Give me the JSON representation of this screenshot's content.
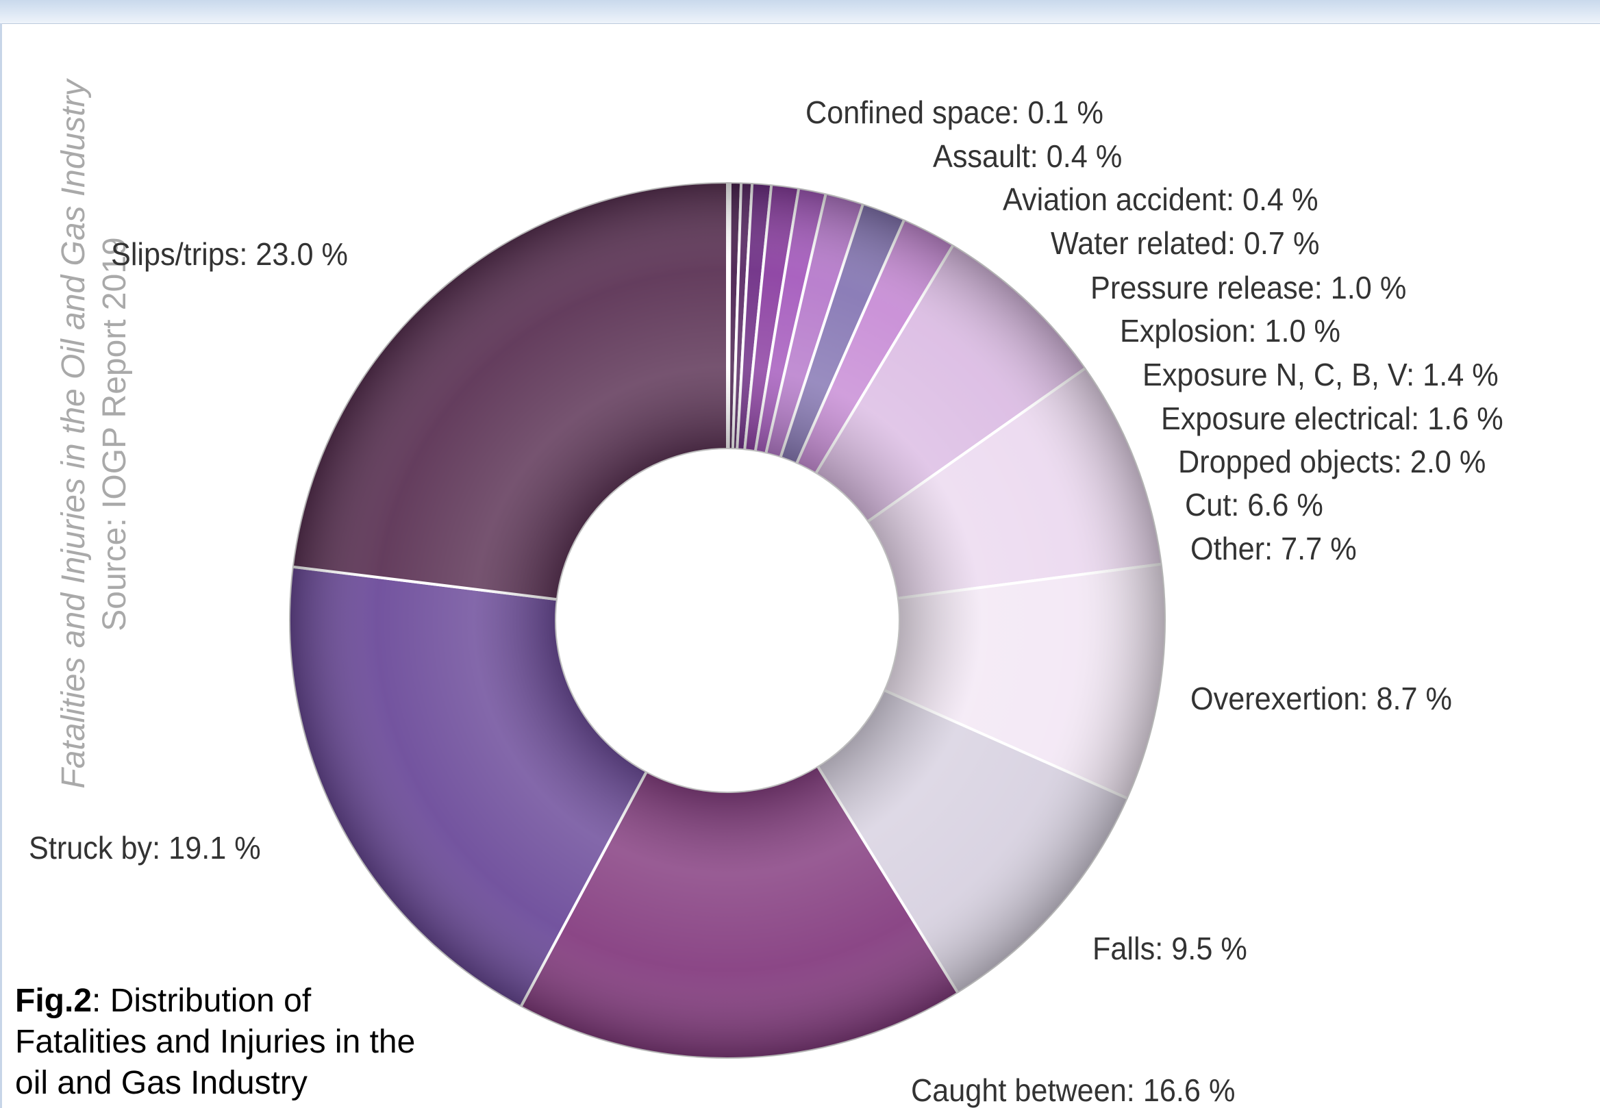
{
  "side_caption": {
    "line1": "Fatalities and Injuries in the Oil and Gas Industry",
    "line2": "Source: IOGP Report 2019"
  },
  "caption": {
    "fig_label": "Fig.2",
    "text": ": Distribution of Fatalities and Injuries in the oil and Gas Industry"
  },
  "chart_data": {
    "type": "pie",
    "variant": "donut",
    "title": "",
    "legend": "none",
    "slices": [
      {
        "label": "Confined space: 0.1 %",
        "value": 0.1,
        "color": "#3a1a3a"
      },
      {
        "label": "Assault: 0.4 %",
        "value": 0.4,
        "color": "#4a2150"
      },
      {
        "label": "Aviation accident: 0.4 %",
        "value": 0.4,
        "color": "#5a2a66"
      },
      {
        "label": "Water related: 0.7 %",
        "value": 0.7,
        "color": "#6f2f86"
      },
      {
        "label": "Pressure release: 1.0 %",
        "value": 1.0,
        "color": "#8b3fa1"
      },
      {
        "label": "Explosion: 1.0 %",
        "value": 1.0,
        "color": "#a55bbd"
      },
      {
        "label": "Exposure N, C, B, V: 1.4 %",
        "value": 1.4,
        "color": "#b67acb"
      },
      {
        "label": "Exposure electrical: 1.6 %",
        "value": 1.6,
        "color": "#8677b4"
      },
      {
        "label": "Dropped objects: 2.0 %",
        "value": 2.0,
        "color": "#c88dd6"
      },
      {
        "label": "Cut: 6.6 %",
        "value": 6.6,
        "color": "#dcbde4"
      },
      {
        "label": "Other: 7.7 %",
        "value": 7.7,
        "color": "#ecdaf0"
      },
      {
        "label": "Overexertion: 8.7 %",
        "value": 8.7,
        "color": "#f3e8f5"
      },
      {
        "label": "Falls: 9.5 %",
        "value": 9.5,
        "color": "#d8d2e1"
      },
      {
        "label": "Caught between: 16.6 %",
        "value": 16.6,
        "color": "#853d80"
      },
      {
        "label": "Struck by: 19.1 %",
        "value": 19.1,
        "color": "#6c4b9a"
      },
      {
        "label": "Slips/trips: 23.0 %",
        "value": 23.0,
        "color": "#5c3355"
      }
    ]
  }
}
